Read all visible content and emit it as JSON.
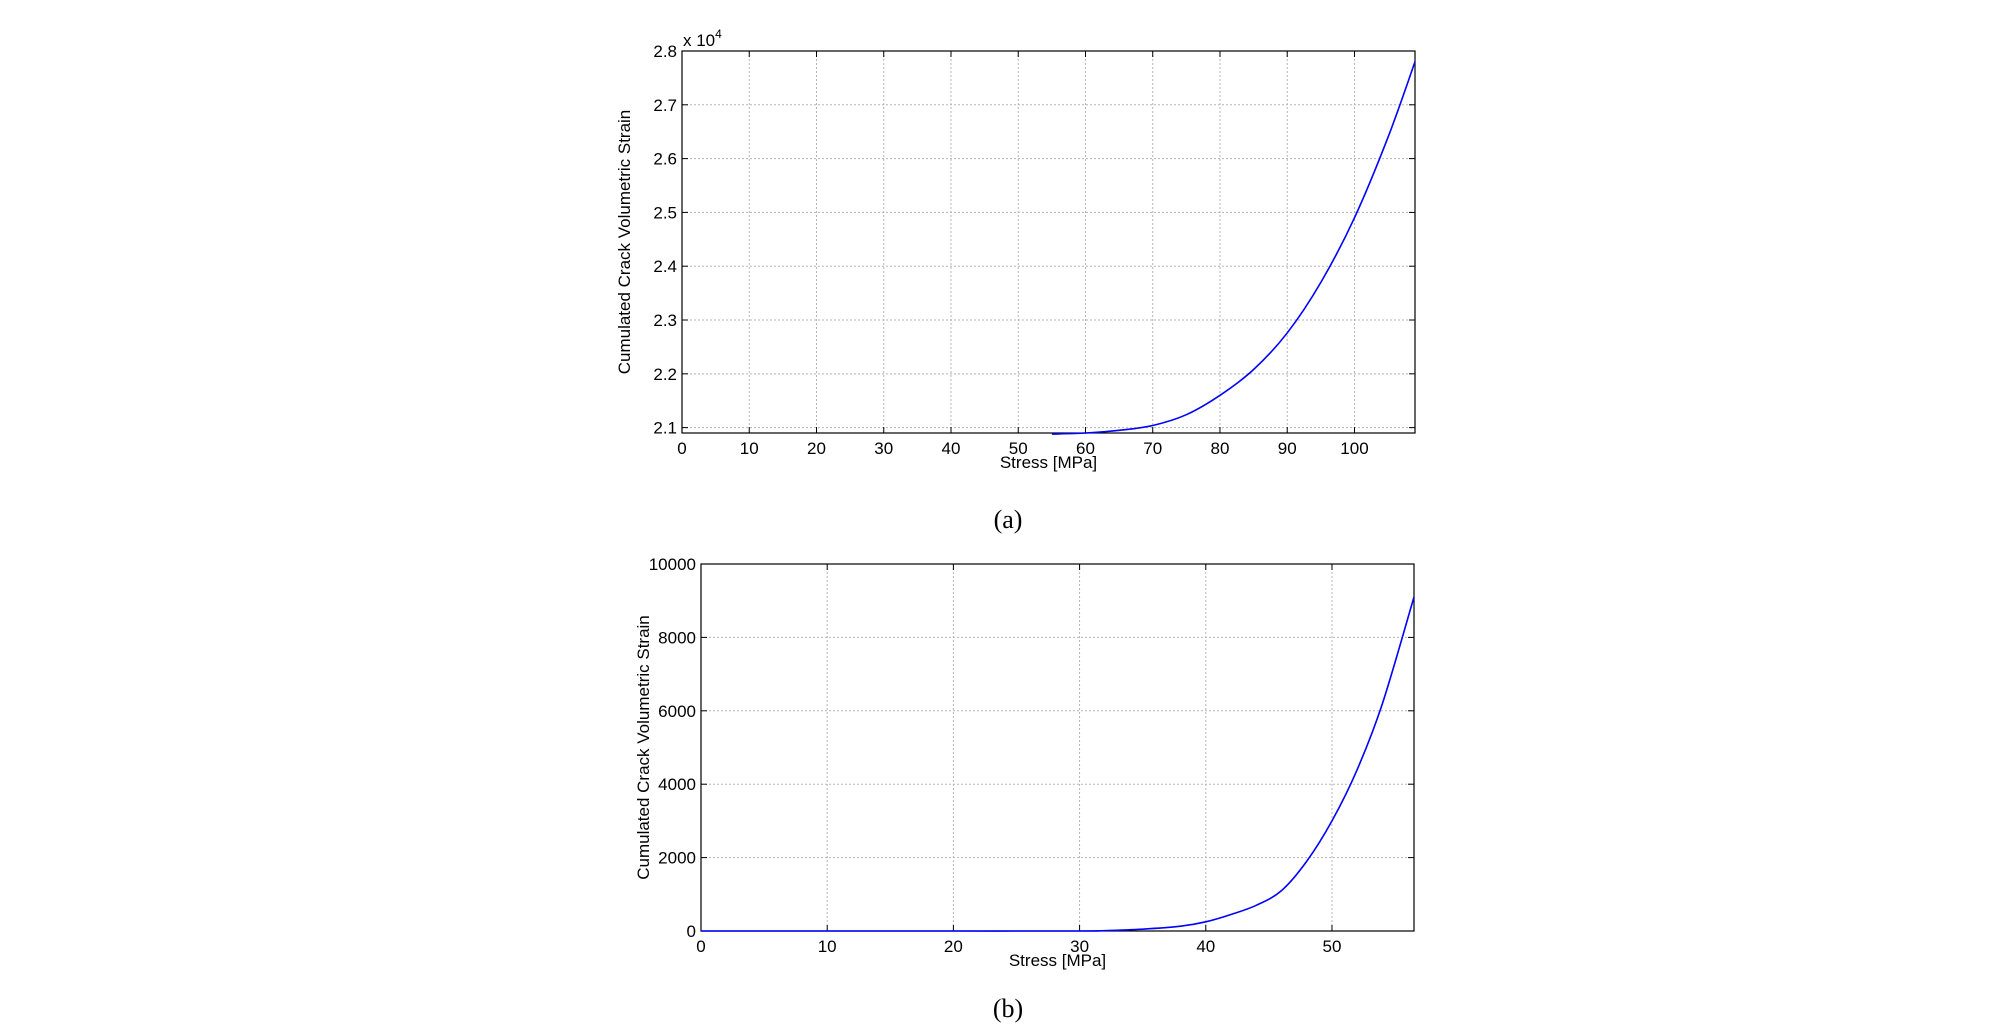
{
  "chart_data": [
    {
      "type": "line",
      "panel_caption": "(a)",
      "xlabel": "Stress [MPa]",
      "ylabel": "Cumulated Crack Volumetric Strain",
      "y_multiplier_label": "x 10",
      "y_multiplier_exponent": "4",
      "xlim": [
        0,
        109
      ],
      "ylim": [
        2.09,
        2.8
      ],
      "xticks": [
        0,
        10,
        20,
        30,
        40,
        50,
        60,
        70,
        80,
        90,
        100
      ],
      "xtick_labels": [
        "0",
        "10",
        "20",
        "30",
        "40",
        "50",
        "60",
        "70",
        "80",
        "90",
        "100"
      ],
      "yticks": [
        2.1,
        2.2,
        2.3,
        2.4,
        2.5,
        2.6,
        2.7,
        2.8
      ],
      "ytick_labels": [
        "2.1",
        "2.2",
        "2.3",
        "2.4",
        "2.5",
        "2.6",
        "2.7",
        "2.8"
      ],
      "grid": true,
      "line_color": "#0000ff",
      "series": [
        {
          "x": [
            55,
            60,
            65,
            70,
            75,
            80,
            85,
            90,
            95,
            100,
            105,
            109
          ],
          "y": [
            2.088,
            2.09,
            2.095,
            2.104,
            2.124,
            2.16,
            2.208,
            2.276,
            2.37,
            2.49,
            2.64,
            2.78
          ]
        }
      ]
    },
    {
      "type": "line",
      "panel_caption": "(b)",
      "xlabel": "Stress [MPa]",
      "ylabel": "Cumulated Crack Volumetric Strain",
      "xlim": [
        0,
        56.5
      ],
      "ylim": [
        0,
        10000
      ],
      "xticks": [
        0,
        10,
        20,
        30,
        40,
        50
      ],
      "xtick_labels": [
        "0",
        "10",
        "20",
        "30",
        "40",
        "50"
      ],
      "yticks": [
        0,
        2000,
        4000,
        6000,
        8000,
        10000
      ],
      "ytick_labels": [
        "0",
        "2000",
        "4000",
        "6000",
        "8000",
        "10000"
      ],
      "grid": true,
      "line_color": "#0000ff",
      "series": [
        {
          "x": [
            0,
            10,
            20,
            30,
            32,
            35,
            38,
            40,
            42,
            44,
            46,
            48,
            50,
            52,
            54,
            56.5
          ],
          "y": [
            0,
            0,
            0,
            0,
            10,
            50,
            130,
            250,
            450,
            700,
            1100,
            1900,
            3000,
            4400,
            6200,
            9100
          ]
        }
      ]
    }
  ]
}
